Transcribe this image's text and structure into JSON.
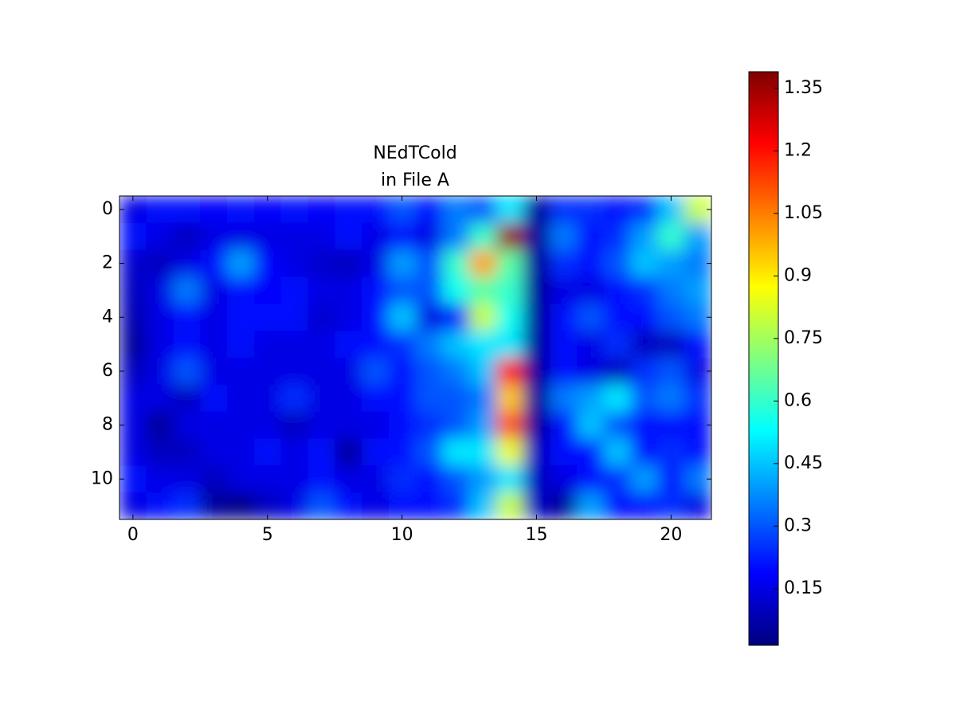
{
  "chart_data": {
    "type": "heatmap",
    "title": [
      "NEdTCold",
      "in File A"
    ],
    "colormap": "jet",
    "xlim": [
      -0.5,
      21.5
    ],
    "xticks": [
      0,
      5,
      10,
      15,
      20
    ],
    "ylim": [
      11.5,
      -0.5
    ],
    "yticks": [
      0,
      2,
      4,
      6,
      8,
      10
    ],
    "zlim": [
      0.014,
      1.39
    ],
    "zticks": [
      0.15,
      0.3,
      0.45,
      0.6,
      0.75,
      0.9,
      1.05,
      1.2,
      1.35
    ],
    "z": [
      [
        0.15,
        0.2,
        0.2,
        0.18,
        0.2,
        0.18,
        0.2,
        0.18,
        0.2,
        0.2,
        0.3,
        0.2,
        0.35,
        0.3,
        0.5,
        0.05,
        0.25,
        0.25,
        0.2,
        0.25,
        0.45,
        0.8
      ],
      [
        0.2,
        0.15,
        0.1,
        0.15,
        0.15,
        0.15,
        0.15,
        0.15,
        0.2,
        0.15,
        0.2,
        0.15,
        0.35,
        0.6,
        1.35,
        0.05,
        0.35,
        0.2,
        0.25,
        0.4,
        0.6,
        0.4
      ],
      [
        0.12,
        0.1,
        0.15,
        0.2,
        0.4,
        0.18,
        0.15,
        0.12,
        0.1,
        0.15,
        0.4,
        0.3,
        0.6,
        1.0,
        0.65,
        0.05,
        0.25,
        0.2,
        0.3,
        0.45,
        0.4,
        0.35
      ],
      [
        0.1,
        0.15,
        0.35,
        0.15,
        0.2,
        0.18,
        0.2,
        0.15,
        0.15,
        0.2,
        0.3,
        0.3,
        0.55,
        0.65,
        0.6,
        0.05,
        0.15,
        0.15,
        0.2,
        0.25,
        0.35,
        0.4
      ],
      [
        0.08,
        0.15,
        0.2,
        0.15,
        0.2,
        0.2,
        0.2,
        0.12,
        0.15,
        0.2,
        0.45,
        0.15,
        0.2,
        0.8,
        0.55,
        0.05,
        0.2,
        0.3,
        0.2,
        0.2,
        0.3,
        0.35
      ],
      [
        0.05,
        0.15,
        0.2,
        0.15,
        0.2,
        0.15,
        0.15,
        0.15,
        0.2,
        0.2,
        0.25,
        0.35,
        0.45,
        0.5,
        0.5,
        0.05,
        0.2,
        0.15,
        0.25,
        0.1,
        0.1,
        0.2
      ],
      [
        0.1,
        0.15,
        0.3,
        0.15,
        0.15,
        0.15,
        0.15,
        0.15,
        0.15,
        0.3,
        0.2,
        0.3,
        0.35,
        0.45,
        1.2,
        0.05,
        0.2,
        0.15,
        0.1,
        0.25,
        0.3,
        0.15
      ],
      [
        0.15,
        0.15,
        0.1,
        0.2,
        0.15,
        0.15,
        0.25,
        0.15,
        0.15,
        0.2,
        0.2,
        0.3,
        0.3,
        0.35,
        0.95,
        0.05,
        0.35,
        0.4,
        0.5,
        0.3,
        0.35,
        0.25
      ],
      [
        0.15,
        0.05,
        0.15,
        0.15,
        0.15,
        0.15,
        0.1,
        0.15,
        0.15,
        0.15,
        0.2,
        0.25,
        0.3,
        0.4,
        1.1,
        0.05,
        0.2,
        0.45,
        0.3,
        0.2,
        0.2,
        0.2
      ],
      [
        0.15,
        0.1,
        0.1,
        0.15,
        0.15,
        0.2,
        0.15,
        0.2,
        0.05,
        0.2,
        0.2,
        0.3,
        0.5,
        0.5,
        0.85,
        0.1,
        0.2,
        0.2,
        0.45,
        0.2,
        0.25,
        0.2
      ],
      [
        0.2,
        0.15,
        0.15,
        0.1,
        0.15,
        0.15,
        0.15,
        0.2,
        0.15,
        0.15,
        0.25,
        0.2,
        0.3,
        0.4,
        0.5,
        0.1,
        0.15,
        0.2,
        0.25,
        0.4,
        0.2,
        0.35
      ],
      [
        0.15,
        0.2,
        0.25,
        0.05,
        0.02,
        0.1,
        0.15,
        0.3,
        0.2,
        0.15,
        0.2,
        0.2,
        0.25,
        0.45,
        0.8,
        0.1,
        0.05,
        0.4,
        0.2,
        0.2,
        0.25,
        0.15
      ]
    ]
  }
}
